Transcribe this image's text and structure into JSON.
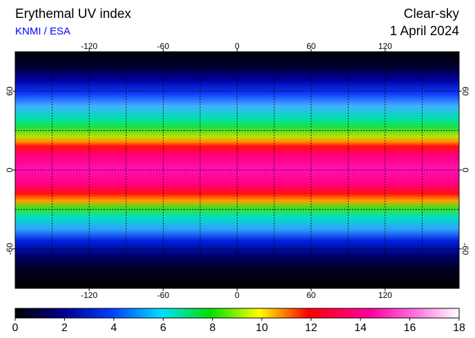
{
  "header": {
    "title": "Erythemal UV index",
    "source": "KNMI / ESA",
    "right_title": "Clear-sky",
    "date": "1 April 2024"
  },
  "map": {
    "lon_range": [
      -180,
      180
    ],
    "lat_range": [
      -90,
      90
    ],
    "lon_ticks": [
      -120,
      -60,
      0,
      60,
      120
    ],
    "lat_ticks": [
      60,
      0,
      -60
    ],
    "grid_lon": [
      -150,
      -120,
      -90,
      -60,
      -30,
      0,
      30,
      60,
      90,
      120,
      150
    ],
    "grid_lat": [
      -60,
      -30,
      0,
      30,
      60
    ]
  },
  "colorbar": {
    "range": [
      0,
      18
    ],
    "ticks": [
      0,
      2,
      4,
      6,
      8,
      10,
      12,
      14,
      16,
      18
    ]
  }
}
